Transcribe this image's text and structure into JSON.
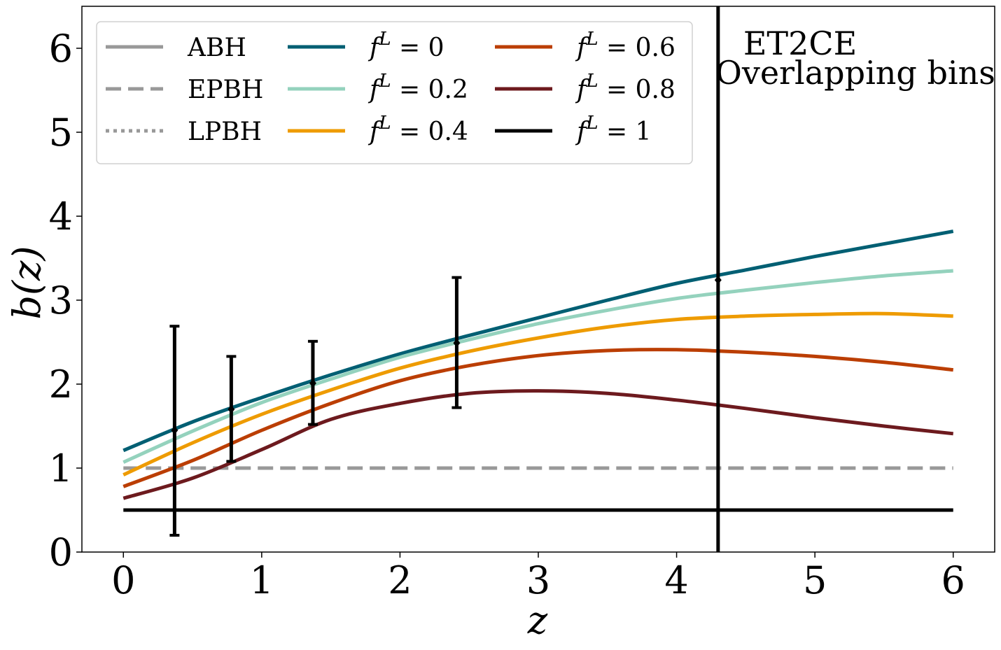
{
  "chart_data": {
    "type": "line",
    "xlabel": "z",
    "ylabel": "b(z)",
    "xlim": [
      -0.3,
      6.3
    ],
    "ylim": [
      0,
      6.5
    ],
    "xticks": [
      "0",
      "1",
      "2",
      "3",
      "4",
      "5",
      "6"
    ],
    "yticks": [
      "0",
      "1",
      "2",
      "3",
      "4",
      "5",
      "6"
    ],
    "annotation_lines": [
      "ET2CE",
      "Overlapping bins"
    ],
    "legend_position": "top-left",
    "legend_columns": 3,
    "series": [
      {
        "name": "ABH",
        "label_plain": "ABH",
        "color": "#999999",
        "style": "solid",
        "in_plot": false,
        "x": [],
        "y": []
      },
      {
        "name": "EPBH",
        "label_plain": "EPBH",
        "color": "#999999",
        "style": "dashed",
        "x": [
          0,
          6
        ],
        "y": [
          1.0,
          1.0
        ]
      },
      {
        "name": "LPBH",
        "label_plain": "LPBH",
        "color": "#999999",
        "style": "dotted",
        "in_plot": false,
        "x": [],
        "y": []
      },
      {
        "name": "f^L = 0",
        "label_var": "f",
        "label_sup": "L",
        "label_rhs": " = 0",
        "color": "#005f73",
        "style": "solid",
        "x": [
          0,
          0.5,
          1,
          1.5,
          2,
          2.5,
          3,
          3.5,
          4,
          4.5,
          5,
          5.5,
          6
        ],
        "y": [
          1.21,
          1.55,
          1.84,
          2.11,
          2.36,
          2.58,
          2.79,
          3.0,
          3.2,
          3.36,
          3.52,
          3.67,
          3.82
        ]
      },
      {
        "name": "f^L = 0.2",
        "label_var": "f",
        "label_sup": "L",
        "label_rhs": " = 0.2",
        "color": "#94d2bd",
        "style": "solid",
        "x": [
          0,
          0.5,
          1,
          1.5,
          2,
          2.5,
          3,
          3.5,
          4,
          4.5,
          5,
          5.5,
          6
        ],
        "y": [
          1.07,
          1.44,
          1.78,
          2.06,
          2.32,
          2.53,
          2.72,
          2.88,
          3.02,
          3.12,
          3.21,
          3.29,
          3.35
        ]
      },
      {
        "name": "f^L = 0.4",
        "label_var": "f",
        "label_sup": "L",
        "label_rhs": " = 0.4",
        "color": "#ee9b00",
        "style": "solid",
        "x": [
          0,
          0.5,
          1,
          1.5,
          2,
          2.5,
          3,
          3.5,
          4,
          4.5,
          5,
          5.5,
          6
        ],
        "y": [
          0.92,
          1.3,
          1.64,
          1.93,
          2.19,
          2.39,
          2.55,
          2.68,
          2.77,
          2.81,
          2.83,
          2.84,
          2.81
        ]
      },
      {
        "name": "f^L = 0.6",
        "label_var": "f",
        "label_sup": "L",
        "label_rhs": " = 0.6",
        "color": "#bb3e03",
        "style": "solid",
        "x": [
          0,
          0.5,
          1,
          1.5,
          2,
          2.5,
          3,
          3.5,
          4,
          4.5,
          5,
          5.5,
          6
        ],
        "y": [
          0.78,
          1.09,
          1.45,
          1.77,
          2.04,
          2.22,
          2.34,
          2.4,
          2.41,
          2.38,
          2.33,
          2.26,
          2.17
        ]
      },
      {
        "name": "f^L = 0.8",
        "label_var": "f",
        "label_sup": "L",
        "label_rhs": " = 0.8",
        "color": "#6d1a1e",
        "style": "solid",
        "x": [
          0,
          0.5,
          1,
          1.5,
          2,
          2.5,
          3,
          3.5,
          4,
          4.5,
          5,
          5.5,
          6
        ],
        "y": [
          0.64,
          0.88,
          1.22,
          1.58,
          1.77,
          1.89,
          1.92,
          1.89,
          1.81,
          1.71,
          1.6,
          1.5,
          1.41
        ]
      },
      {
        "name": "f^L = 1",
        "label_var": "f",
        "label_sup": "L",
        "label_rhs": " = 1",
        "color": "#000000",
        "style": "solid",
        "x": [
          0,
          6
        ],
        "y": [
          0.5,
          0.5
        ]
      }
    ],
    "error_bars": {
      "name": "ET2CE bin measurements",
      "x": [
        0.37,
        0.78,
        1.37,
        2.41,
        4.3
      ],
      "y": [
        1.45,
        1.7,
        2.01,
        2.49,
        3.24
      ],
      "lower": [
        0.2,
        1.08,
        1.52,
        1.72,
        -1
      ],
      "upper": [
        2.69,
        2.33,
        2.51,
        3.27,
        7.5
      ]
    }
  }
}
